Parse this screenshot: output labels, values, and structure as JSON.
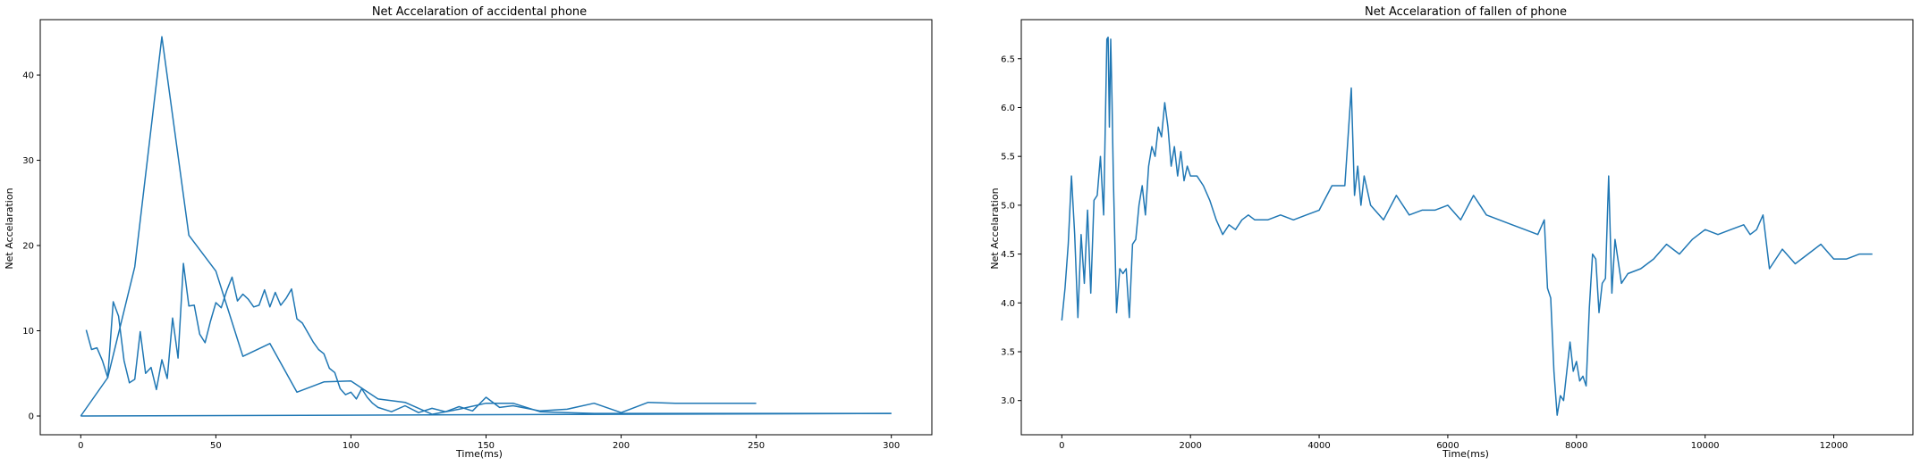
{
  "chart_data": [
    {
      "type": "line",
      "title": "Net Accelaration of accidental phone",
      "xlabel": "Time(ms)",
      "ylabel": "Net Accelaration",
      "xlim": [
        -15,
        315
      ],
      "ylim": [
        -2.2,
        46.5
      ],
      "xticks": [
        0,
        50,
        100,
        150,
        200,
        250,
        300
      ],
      "yticks": [
        0,
        10,
        20,
        30,
        40
      ],
      "color": "#1f77b4",
      "grid": false,
      "series": [
        {
          "x": [
            2,
            4,
            6,
            8,
            10,
            12,
            14,
            16,
            18,
            20,
            22,
            24,
            26,
            28,
            30,
            32,
            34,
            36,
            38,
            40,
            42,
            44,
            46,
            48,
            50,
            52,
            54,
            56,
            58,
            60,
            62,
            64,
            66,
            68,
            70,
            72,
            74,
            76,
            78,
            80,
            82,
            84,
            86,
            88,
            90,
            92,
            94,
            96,
            98,
            100,
            102,
            104,
            106,
            108,
            110,
            115,
            120,
            125,
            130,
            135,
            140,
            145,
            150,
            155,
            160,
            170,
            180,
            190,
            200,
            210,
            220,
            230,
            240,
            250
          ],
          "y": [
            10.1,
            7.8,
            8.0,
            6.5,
            4.5,
            13.4,
            11.7,
            6.5,
            3.9,
            4.3,
            9.9,
            5.0,
            5.7,
            3.1,
            6.6,
            4.4,
            11.5,
            6.8,
            17.9,
            12.9,
            13.0,
            9.6,
            8.6,
            11.1,
            13.3,
            12.7,
            14.7,
            16.3,
            13.5,
            14.3,
            13.7,
            12.8,
            13.0,
            14.8,
            12.8,
            14.5,
            13.0,
            13.8,
            14.9,
            11.4,
            10.9,
            9.8,
            8.7,
            7.8,
            7.3,
            5.6,
            5.1,
            3.2,
            2.5,
            2.8,
            2.0,
            3.2,
            2.2,
            1.5,
            1.0,
            0.5,
            1.2,
            0.4,
            0.9,
            0.5,
            1.1,
            0.6,
            2.2,
            1.0,
            1.2,
            0.6,
            0.8,
            1.5,
            0.4,
            1.6,
            1.5,
            1.5,
            1.5,
            1.5
          ]
        },
        {
          "x": [
            0,
            10,
            20,
            30,
            40,
            50,
            60,
            70,
            80,
            90,
            100,
            110,
            120,
            130,
            140,
            150,
            160,
            170,
            180,
            190,
            200,
            210,
            300
          ],
          "y": [
            0,
            4.5,
            17.5,
            44.5,
            21.2,
            17.0,
            7.0,
            8.5,
            2.8,
            4.0,
            4.1,
            2.0,
            1.6,
            0.2,
            0.8,
            1.5,
            1.5,
            0.5,
            0.4,
            0.3,
            0.3,
            0.3,
            0.3
          ]
        },
        {
          "x": [
            0,
            300
          ],
          "y": [
            0.0,
            0.3
          ]
        }
      ]
    },
    {
      "type": "line",
      "title": "Net Accelaration of fallen of phone",
      "xlabel": "Time(ms)",
      "ylabel": "Net Accelaration",
      "xlim": [
        -630,
        13230
      ],
      "ylim": [
        2.65,
        6.9
      ],
      "xticks": [
        0,
        2000,
        4000,
        6000,
        8000,
        10000,
        12000
      ],
      "yticks": [
        3.0,
        3.5,
        4.0,
        4.5,
        5.0,
        5.5,
        6.0,
        6.5
      ],
      "color": "#1f77b4",
      "grid": false,
      "series": [
        {
          "x": [
            0,
            50,
            100,
            150,
            200,
            250,
            300,
            350,
            400,
            450,
            500,
            550,
            600,
            650,
            700,
            720,
            740,
            760,
            780,
            800,
            850,
            900,
            950,
            1000,
            1050,
            1100,
            1150,
            1200,
            1250,
            1300,
            1350,
            1400,
            1450,
            1500,
            1550,
            1600,
            1650,
            1700,
            1750,
            1800,
            1850,
            1900,
            1950,
            2000,
            2100,
            2200,
            2300,
            2400,
            2500,
            2600,
            2700,
            2800,
            2900,
            3000,
            3200,
            3400,
            3600,
            3800,
            4000,
            4200,
            4400,
            4500,
            4550,
            4600,
            4650,
            4700,
            4800,
            5000,
            5200,
            5400,
            5600,
            5800,
            6000,
            6200,
            6400,
            6600,
            6800,
            7000,
            7200,
            7400,
            7500,
            7550,
            7600,
            7650,
            7700,
            7750,
            7800,
            7850,
            7900,
            7950,
            8000,
            8050,
            8100,
            8150,
            8200,
            8250,
            8300,
            8350,
            8400,
            8450,
            8500,
            8550,
            8600,
            8700,
            8800,
            9000,
            9200,
            9400,
            9600,
            9800,
            10000,
            10200,
            10400,
            10600,
            10700,
            10800,
            10900,
            11000,
            11200,
            11400,
            11600,
            11800,
            12000,
            12200,
            12400,
            12600
          ],
          "y": [
            3.82,
            4.15,
            4.6,
            5.3,
            4.7,
            3.85,
            4.7,
            4.2,
            4.95,
            4.1,
            5.05,
            5.1,
            5.5,
            4.9,
            6.7,
            6.72,
            5.8,
            6.7,
            6.1,
            5.3,
            3.9,
            4.35,
            4.3,
            4.35,
            3.85,
            4.6,
            4.65,
            5.0,
            5.2,
            4.9,
            5.4,
            5.6,
            5.5,
            5.8,
            5.7,
            6.05,
            5.8,
            5.4,
            5.6,
            5.3,
            5.55,
            5.25,
            5.4,
            5.3,
            5.3,
            5.2,
            5.05,
            4.85,
            4.7,
            4.8,
            4.75,
            4.85,
            4.9,
            4.85,
            4.85,
            4.9,
            4.85,
            4.9,
            4.95,
            5.2,
            5.2,
            6.2,
            5.1,
            5.4,
            5.0,
            5.3,
            5.0,
            4.85,
            5.1,
            4.9,
            4.95,
            4.95,
            5.0,
            4.85,
            5.1,
            4.9,
            4.85,
            4.8,
            4.75,
            4.7,
            4.85,
            4.15,
            4.05,
            3.3,
            2.85,
            3.05,
            3.0,
            3.3,
            3.6,
            3.3,
            3.4,
            3.2,
            3.25,
            3.15,
            3.95,
            4.5,
            4.45,
            3.9,
            4.2,
            4.25,
            5.3,
            4.1,
            4.65,
            4.2,
            4.3,
            4.35,
            4.45,
            4.6,
            4.5,
            4.65,
            4.75,
            4.7,
            4.75,
            4.8,
            4.7,
            4.75,
            4.9,
            4.35,
            4.55,
            4.4,
            4.5,
            4.6,
            4.45,
            4.45,
            4.5,
            4.5
          ]
        }
      ]
    }
  ]
}
